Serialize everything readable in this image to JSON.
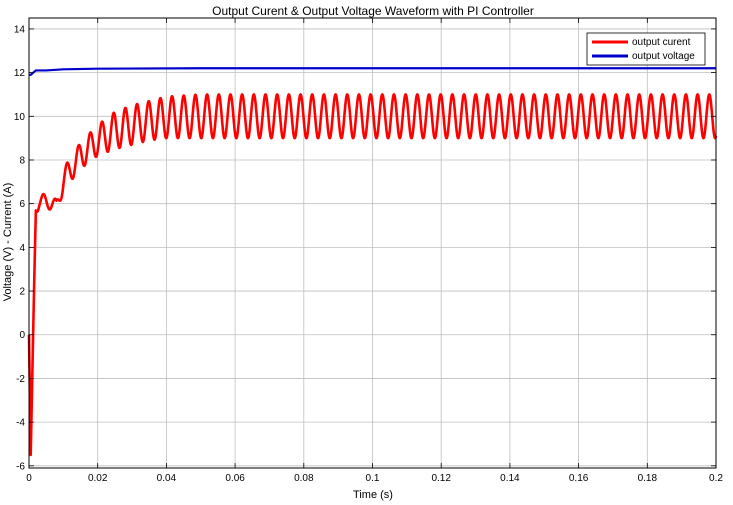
{
  "chart_data": {
    "type": "line",
    "title": "Output Curent & Output Voltage Waveform with PI Controller",
    "xlabel": "Time (s)",
    "ylabel": "Voltage (V) - Current (A)",
    "xlim": [
      0,
      0.2
    ],
    "ylim": [
      -6.1,
      14.5
    ],
    "xticks": [
      0,
      0.02,
      0.04,
      0.06,
      0.08,
      0.1,
      0.12,
      0.14,
      0.16,
      0.18,
      0.2
    ],
    "xtick_labels": [
      "0",
      "0.02",
      "0.04",
      "0.06",
      "0.08",
      "0.1",
      "0.12",
      "0.14",
      "0.16",
      "0.18",
      "0.2"
    ],
    "yticks": [
      -6,
      -4,
      -2,
      0,
      2,
      4,
      6,
      8,
      10,
      12,
      14
    ],
    "ytick_labels": [
      "-6",
      "-4",
      "-2",
      "0",
      "2",
      "4",
      "6",
      "8",
      "10",
      "12",
      "14"
    ],
    "grid": true,
    "legend_position": "top-right",
    "series": [
      {
        "name": "output curent",
        "color": "#ff0000",
        "ripple_period": 0.0034,
        "lower_envelope": {
          "x": [
            0,
            0.0005,
            0.0012,
            0.002,
            0.003,
            0.005,
            0.008,
            0.01,
            0.012,
            0.015,
            0.02,
            0.025,
            0.03,
            0.035,
            0.04,
            0.05,
            0.06,
            0.08,
            0.1,
            0.15,
            0.2
          ],
          "y": [
            0,
            -5.5,
            0,
            5.5,
            5.8,
            5.8,
            5.6,
            6.5,
            7.0,
            7.6,
            8.2,
            8.5,
            8.7,
            8.9,
            9.0,
            9.0,
            9.0,
            9.0,
            9.0,
            9.0,
            9.0
          ]
        },
        "upper_envelope": {
          "x": [
            0,
            0.0005,
            0.0012,
            0.002,
            0.003,
            0.005,
            0.008,
            0.01,
            0.012,
            0.015,
            0.02,
            0.025,
            0.03,
            0.035,
            0.04,
            0.05,
            0.06,
            0.08,
            0.1,
            0.15,
            0.2
          ],
          "y": [
            0,
            -5.5,
            0,
            6.3,
            6.5,
            6.4,
            6.2,
            7.6,
            8.1,
            8.8,
            9.6,
            10.2,
            10.5,
            10.7,
            10.9,
            11.0,
            11.0,
            11.0,
            11.0,
            11.0,
            11.0
          ]
        }
      },
      {
        "name": "output voltage",
        "color": "#0000cc",
        "x": [
          0,
          0.0005,
          0.002,
          0.005,
          0.01,
          0.02,
          0.05,
          0.1,
          0.15,
          0.2
        ],
        "y": [
          11.9,
          11.9,
          12.1,
          12.1,
          12.15,
          12.18,
          12.2,
          12.2,
          12.2,
          12.2
        ]
      }
    ]
  }
}
